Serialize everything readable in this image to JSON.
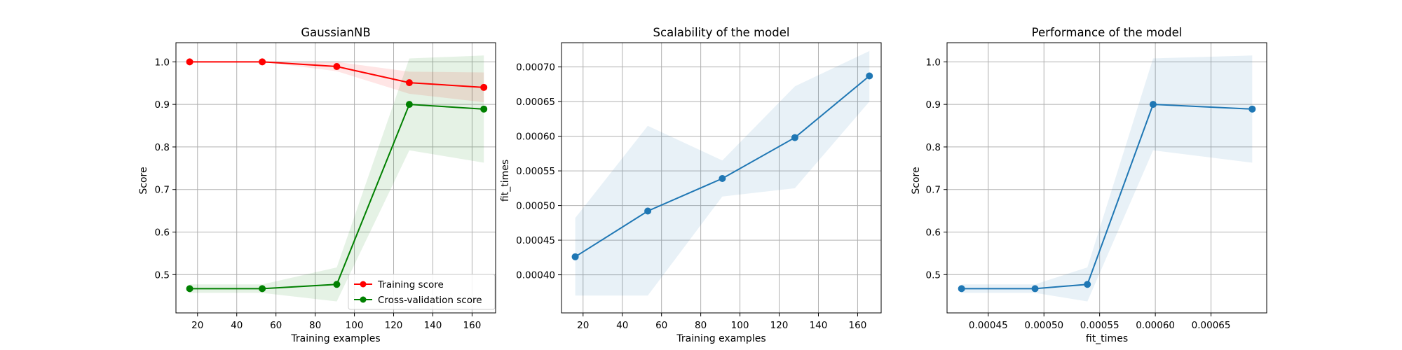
{
  "chart_data": [
    {
      "type": "line",
      "title": "GaussianNB",
      "xlabel": "Training examples",
      "ylabel": "Score",
      "xlim": [
        9,
        172
      ],
      "ylim": [
        0.41,
        1.045
      ],
      "xticks": [
        20,
        40,
        60,
        80,
        100,
        120,
        140,
        160
      ],
      "yticks": [
        0.5,
        0.6,
        0.7,
        0.8,
        0.9,
        1.0
      ],
      "xtick_labels": [
        "20",
        "40",
        "60",
        "80",
        "100",
        "120",
        "140",
        "160"
      ],
      "ytick_labels": [
        "0.5",
        "0.6",
        "0.7",
        "0.8",
        "0.9",
        "1.0"
      ],
      "grid": true,
      "legend": "lower-right",
      "x": [
        16,
        53,
        91,
        128,
        166
      ],
      "series": [
        {
          "name": "Training score",
          "color": "#ff0000",
          "values": [
            1.0,
            1.0,
            0.989,
            0.951,
            0.94
          ],
          "lower": [
            1.0,
            1.0,
            0.978,
            0.925,
            0.905
          ],
          "upper": [
            1.0,
            1.0,
            1.0,
            0.977,
            0.975
          ]
        },
        {
          "name": "Cross-validation score",
          "color": "#008000",
          "values": [
            0.467,
            0.467,
            0.477,
            0.9,
            0.889
          ],
          "lower": [
            0.457,
            0.457,
            0.437,
            0.792,
            0.763
          ],
          "upper": [
            0.477,
            0.477,
            0.517,
            1.008,
            1.015
          ]
        }
      ]
    },
    {
      "type": "line",
      "title": "Scalability of the model",
      "xlabel": "Training examples",
      "ylabel": "fit_times",
      "xlim": [
        9,
        172
      ],
      "ylim": [
        0.000345,
        0.000735
      ],
      "xticks": [
        20,
        40,
        60,
        80,
        100,
        120,
        140,
        160
      ],
      "yticks": [
        0.0004,
        0.00045,
        0.0005,
        0.00055,
        0.0006,
        0.00065,
        0.0007
      ],
      "xtick_labels": [
        "20",
        "40",
        "60",
        "80",
        "100",
        "120",
        "140",
        "160"
      ],
      "ytick_labels": [
        "0.00040",
        "0.00045",
        "0.00050",
        "0.00055",
        "0.00060",
        "0.00065",
        "0.00070"
      ],
      "grid": true,
      "x": [
        16,
        53,
        91,
        128,
        166
      ],
      "series": [
        {
          "color": "#1f77b4",
          "values": [
            0.000426,
            0.000492,
            0.000539,
            0.000598,
            0.000687
          ],
          "lower": [
            0.00037,
            0.00037,
            0.000513,
            0.000525,
            0.00065
          ],
          "upper": [
            0.000482,
            0.000615,
            0.000565,
            0.000672,
            0.000723
          ]
        }
      ]
    },
    {
      "type": "line",
      "title": "Performance of the model",
      "xlabel": "fit_times",
      "ylabel": "Score",
      "xlim": [
        0.000413,
        0.0007
      ],
      "ylim": [
        0.41,
        1.045
      ],
      "xticks": [
        0.00045,
        0.0005,
        0.00055,
        0.0006,
        0.00065
      ],
      "yticks": [
        0.5,
        0.6,
        0.7,
        0.8,
        0.9,
        1.0
      ],
      "xtick_labels": [
        "0.00045",
        "0.00050",
        "0.00055",
        "0.00060",
        "0.00065"
      ],
      "ytick_labels": [
        "0.5",
        "0.6",
        "0.7",
        "0.8",
        "0.9",
        "1.0"
      ],
      "grid": true,
      "x": [
        0.000426,
        0.000492,
        0.000539,
        0.000598,
        0.000687
      ],
      "series": [
        {
          "color": "#1f77b4",
          "values": [
            0.467,
            0.467,
            0.477,
            0.9,
            0.889
          ],
          "lower": [
            0.457,
            0.457,
            0.437,
            0.792,
            0.763
          ],
          "upper": [
            0.477,
            0.477,
            0.517,
            1.008,
            1.015
          ]
        }
      ]
    }
  ]
}
